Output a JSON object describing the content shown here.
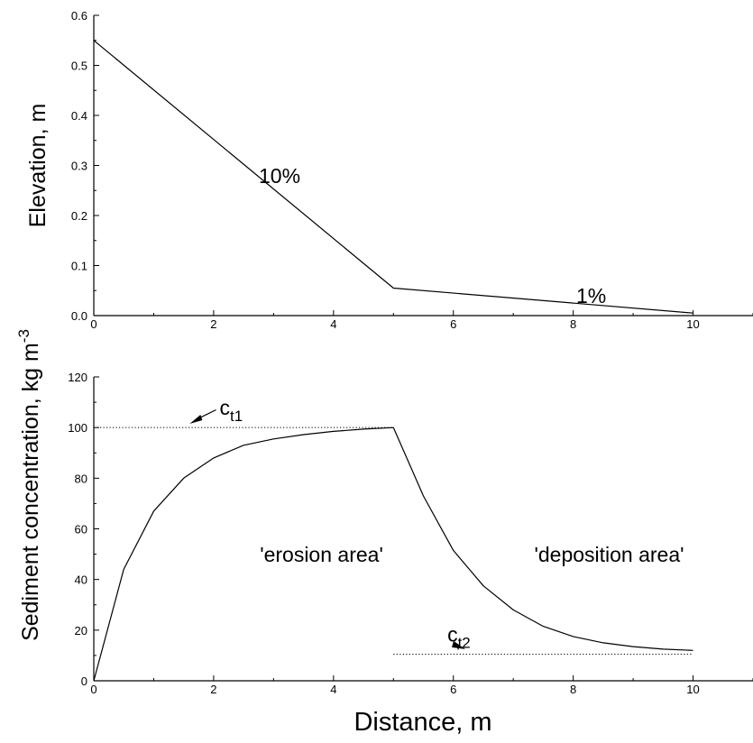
{
  "chart_data": [
    {
      "type": "line",
      "ylabel": "Elevation, m",
      "xlim": [
        0,
        11
      ],
      "ylim": [
        0,
        0.6
      ],
      "xticks": [
        "0",
        "2",
        "4",
        "6",
        "8",
        "10"
      ],
      "yticks": [
        "0.0",
        "0.1",
        "0.2",
        "0.3",
        "0.4",
        "0.5",
        "0.6"
      ],
      "grid": false,
      "series": [
        {
          "x": [
            0,
            5,
            10
          ],
          "y": [
            0.55,
            0.055,
            0.005
          ]
        }
      ],
      "annotations": [
        {
          "text": "10%",
          "x": 3.1,
          "y": 0.265
        },
        {
          "text": "1%",
          "x": 8.3,
          "y": 0.025
        }
      ]
    },
    {
      "type": "line",
      "xlabel": "Distance, m",
      "ylabel_main": "Sediment concentration, kg m",
      "ylabel_sup": "-3",
      "xlim": [
        0,
        11
      ],
      "ylim": [
        0,
        120
      ],
      "xticks": [
        "0",
        "2",
        "4",
        "6",
        "8",
        "10"
      ],
      "yticks": [
        "0",
        "20",
        "40",
        "60",
        "80",
        "100",
        "120"
      ],
      "grid": false,
      "series": [
        {
          "x": [
            0,
            0.5,
            1,
            1.5,
            2,
            2.5,
            3,
            3.5,
            4,
            4.5,
            5,
            5.5,
            6,
            6.5,
            7,
            7.5,
            8,
            8.5,
            9,
            9.5,
            10
          ],
          "y": [
            0,
            44,
            67,
            80,
            88,
            93,
            95.5,
            97.2,
            98.5,
            99.4,
            100,
            73,
            51.5,
            37.5,
            28,
            21.5,
            17.5,
            15,
            13.5,
            12.5,
            12
          ]
        }
      ],
      "reference_lines": [
        {
          "y": 100,
          "x": [
            0,
            5
          ]
        },
        {
          "y": 10.5,
          "x": [
            5,
            10
          ]
        }
      ],
      "annotations": [
        {
          "base": "c",
          "sub": "t1",
          "text_x": 2.1,
          "text_y": 105,
          "arrow_from": [
            1.65,
            108
          ],
          "arrow_to": [
            1.6,
            101.5
          ]
        },
        {
          "base": "c",
          "sub": "t2",
          "text_x": 5.9,
          "text_y": 15.5,
          "arrow_from": [
            5.85,
            17.5
          ],
          "arrow_to": [
            5.85,
            12
          ]
        },
        {
          "text": "'erosion area'",
          "x": 3.8,
          "y": 47
        },
        {
          "text": "'deposition area'",
          "x": 8.6,
          "y": 47
        }
      ]
    }
  ]
}
